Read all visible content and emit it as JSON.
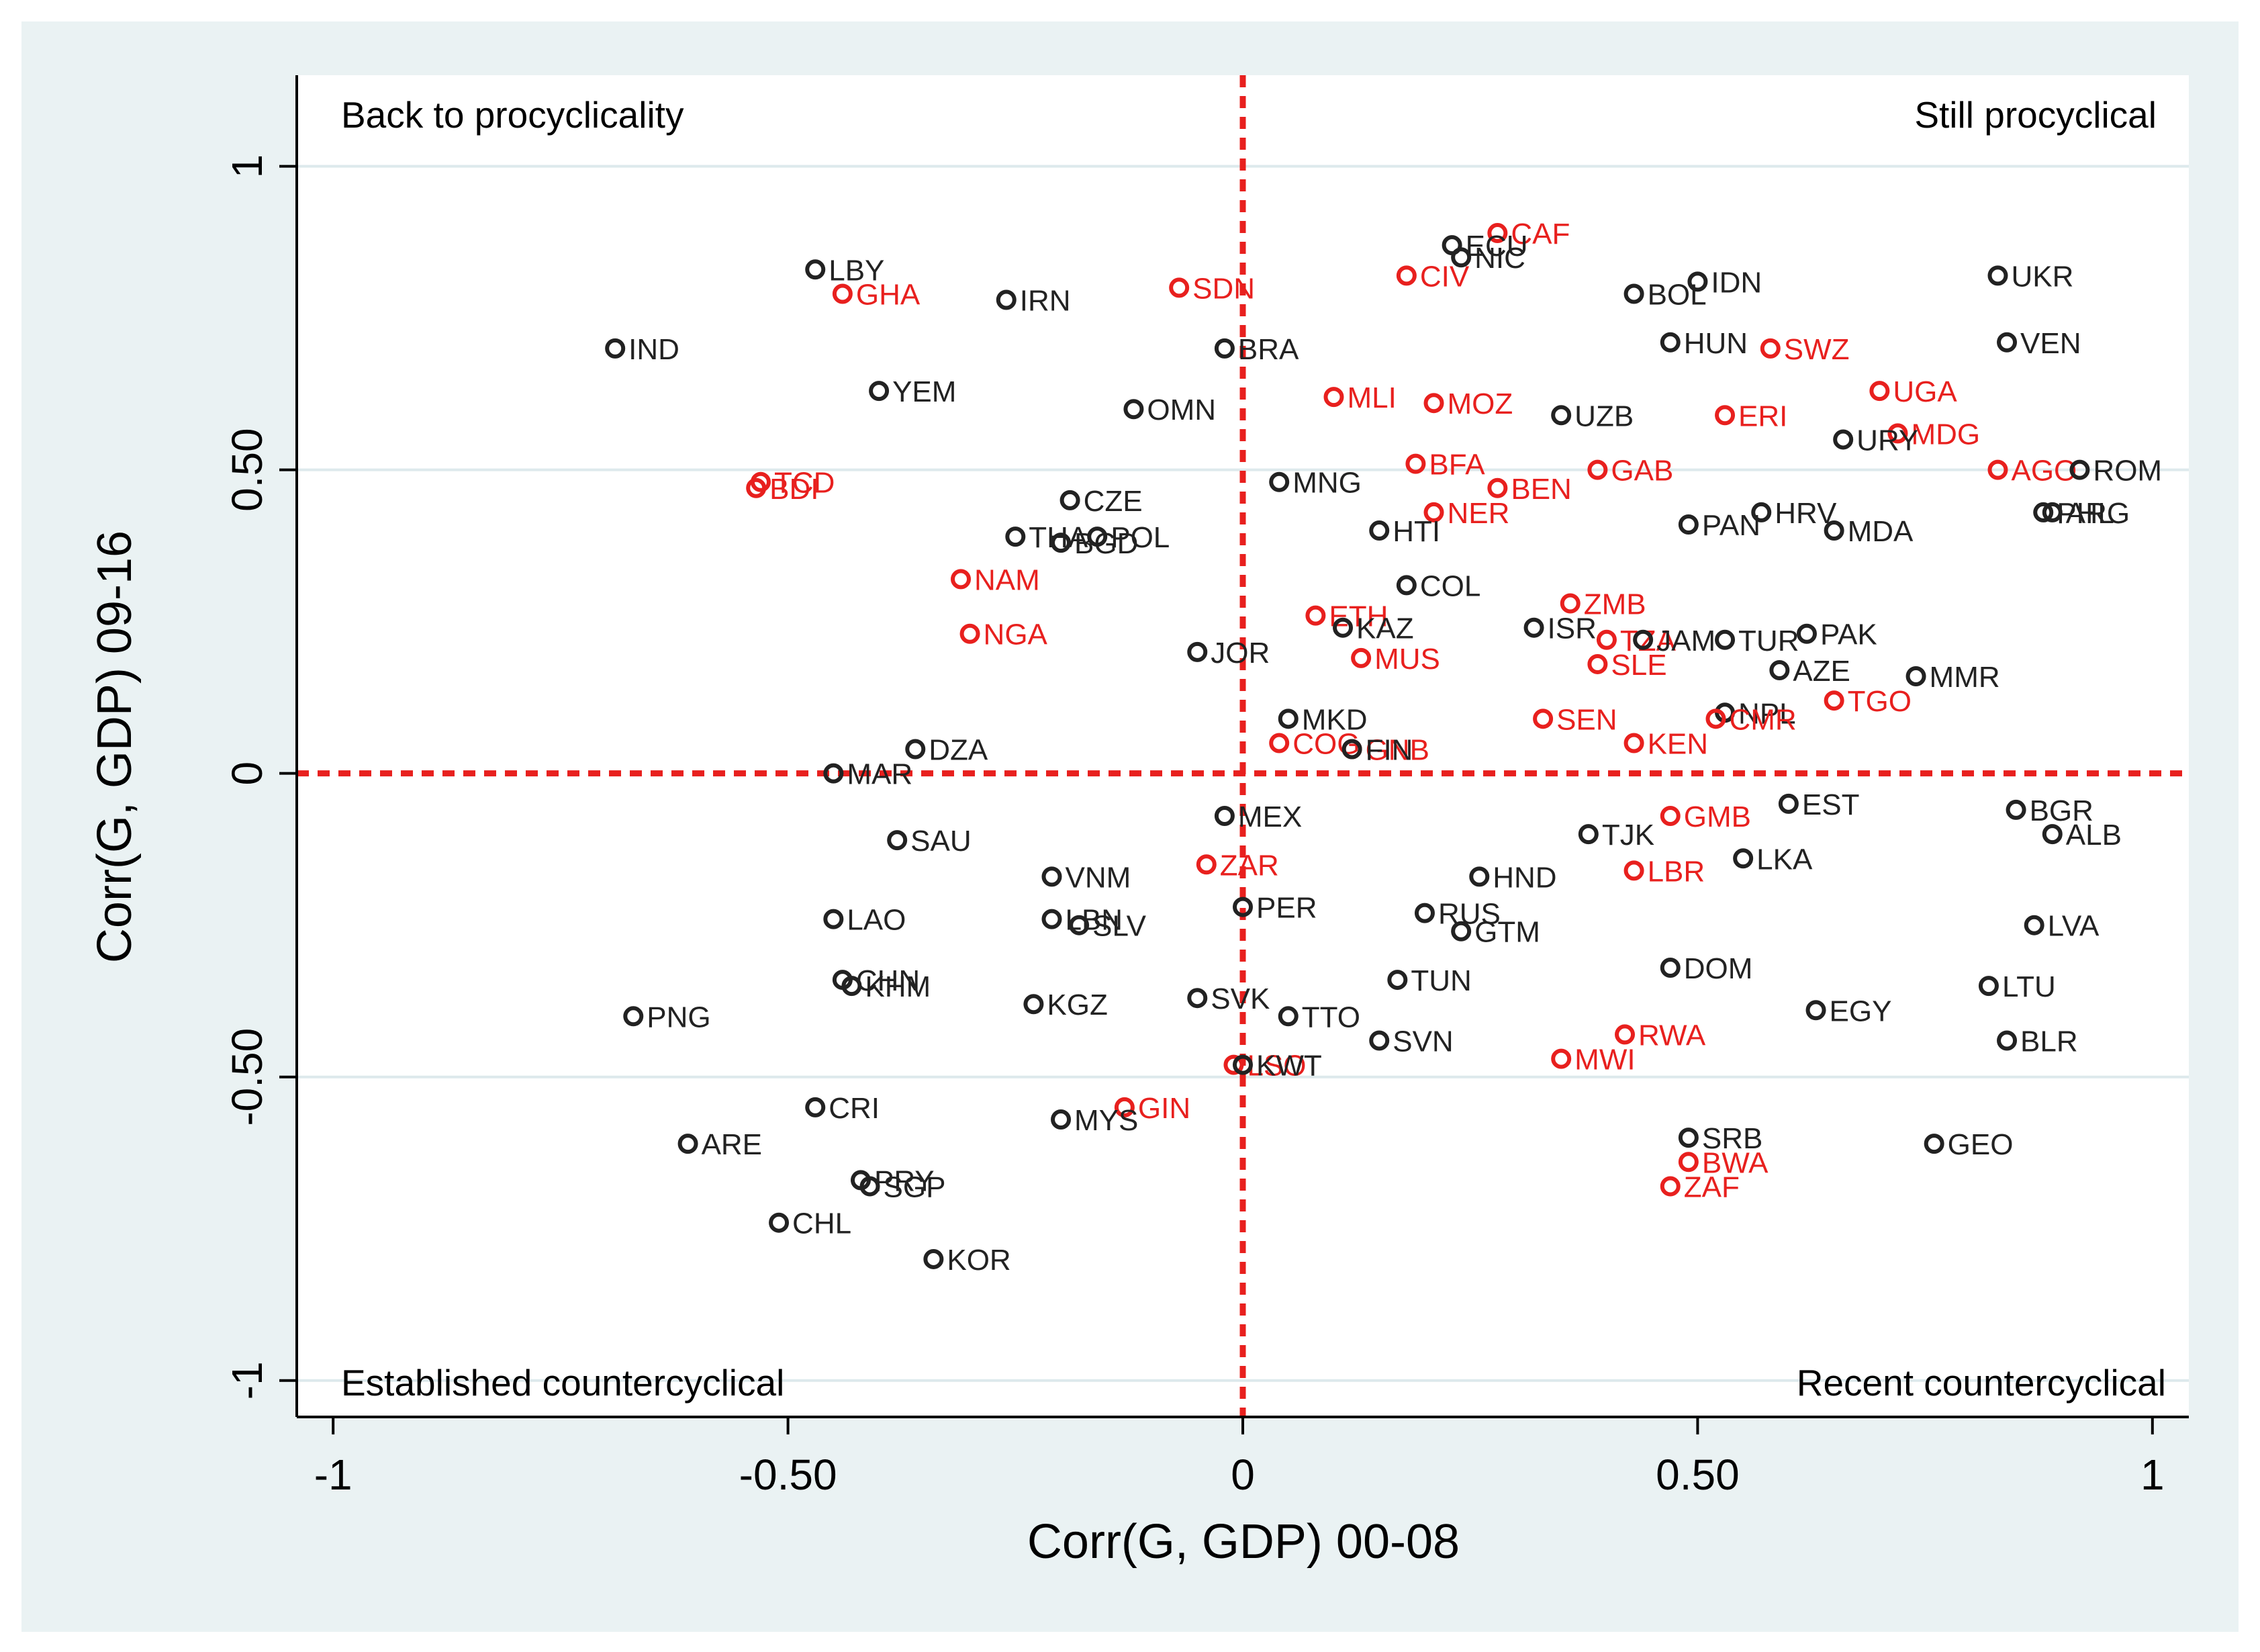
{
  "chart_data": {
    "type": "scatter",
    "xlabel": "Corr(G, GDP) 00-08",
    "ylabel": "Corr(G, GDP) 09-16",
    "xlim": [
      -1.04,
      1.04
    ],
    "ylim": [
      -1.06,
      1.15
    ],
    "xticks": [
      {
        "v": -1,
        "label": "-1"
      },
      {
        "v": -0.5,
        "label": "-0.50"
      },
      {
        "v": 0,
        "label": "0"
      },
      {
        "v": 0.5,
        "label": "0.50"
      },
      {
        "v": 1,
        "label": "1"
      }
    ],
    "yticks": [
      {
        "v": -1,
        "label": "-1"
      },
      {
        "v": -0.5,
        "label": "-0.50"
      },
      {
        "v": 0,
        "label": "0"
      },
      {
        "v": 0.5,
        "label": "0.50"
      },
      {
        "v": 1,
        "label": "1"
      }
    ],
    "grid": "horizontal",
    "reference_lines": {
      "x": 0,
      "y": 0
    },
    "quadrant_labels": {
      "top_left": "Back to procyclicality",
      "top_right": "Still procyclical",
      "bottom_left": "Established countercyclical",
      "bottom_right": "Recent countercyclical"
    },
    "colors": {
      "black_group": "#222222",
      "red_group": "#e8201e",
      "reference_line": "#e8201e",
      "background": "#eaf2f3",
      "grid": "#dde9ec"
    },
    "points": [
      {
        "label": "IND",
        "x": -0.69,
        "y": 0.7,
        "g": "black"
      },
      {
        "label": "LBY",
        "x": -0.47,
        "y": 0.83,
        "g": "black"
      },
      {
        "label": "GHA",
        "x": -0.44,
        "y": 0.79,
        "g": "red"
      },
      {
        "label": "IRN",
        "x": -0.26,
        "y": 0.78,
        "g": "black"
      },
      {
        "label": "SDN",
        "x": -0.07,
        "y": 0.8,
        "g": "red"
      },
      {
        "label": "YEM",
        "x": -0.4,
        "y": 0.63,
        "g": "black"
      },
      {
        "label": "OMN",
        "x": -0.12,
        "y": 0.6,
        "g": "black"
      },
      {
        "label": "BRA",
        "x": -0.02,
        "y": 0.7,
        "g": "black"
      },
      {
        "label": "TCD",
        "x": -0.53,
        "y": 0.48,
        "g": "red"
      },
      {
        "label": "BDI",
        "x": -0.535,
        "y": 0.47,
        "g": "red"
      },
      {
        "label": "CZE",
        "x": -0.19,
        "y": 0.45,
        "g": "black"
      },
      {
        "label": "THA",
        "x": -0.25,
        "y": 0.39,
        "g": "black"
      },
      {
        "label": "POL",
        "x": -0.16,
        "y": 0.39,
        "g": "black"
      },
      {
        "label": "BGD",
        "x": -0.2,
        "y": 0.38,
        "g": "black"
      },
      {
        "label": "NAM",
        "x": -0.31,
        "y": 0.32,
        "g": "red"
      },
      {
        "label": "NGA",
        "x": -0.3,
        "y": 0.23,
        "g": "red"
      },
      {
        "label": "JOR",
        "x": -0.05,
        "y": 0.2,
        "g": "black"
      },
      {
        "label": "DZA",
        "x": -0.36,
        "y": 0.04,
        "g": "black"
      },
      {
        "label": "MAR",
        "x": -0.45,
        "y": 0.0,
        "g": "black"
      },
      {
        "label": "SAU",
        "x": -0.38,
        "y": -0.11,
        "g": "black"
      },
      {
        "label": "MEX",
        "x": -0.02,
        "y": -0.07,
        "g": "black"
      },
      {
        "label": "ZAR",
        "x": -0.04,
        "y": -0.15,
        "g": "red"
      },
      {
        "label": "VNM",
        "x": -0.21,
        "y": -0.17,
        "g": "black"
      },
      {
        "label": "LAO",
        "x": -0.45,
        "y": -0.24,
        "g": "black"
      },
      {
        "label": "LBN",
        "x": -0.21,
        "y": -0.24,
        "g": "black"
      },
      {
        "label": "SLV",
        "x": -0.18,
        "y": -0.25,
        "g": "black"
      },
      {
        "label": "PER",
        "x": 0.0,
        "y": -0.22,
        "g": "black"
      },
      {
        "label": "CHN",
        "x": -0.44,
        "y": -0.34,
        "g": "black"
      },
      {
        "label": "KHM",
        "x": -0.43,
        "y": -0.35,
        "g": "black"
      },
      {
        "label": "PNG",
        "x": -0.67,
        "y": -0.4,
        "g": "black"
      },
      {
        "label": "KGZ",
        "x": -0.23,
        "y": -0.38,
        "g": "black"
      },
      {
        "label": "SVK",
        "x": -0.05,
        "y": -0.37,
        "g": "black"
      },
      {
        "label": "TTO",
        "x": 0.05,
        "y": -0.4,
        "g": "black"
      },
      {
        "label": "SVN",
        "x": 0.15,
        "y": -0.44,
        "g": "black"
      },
      {
        "label": "LSO",
        "x": -0.01,
        "y": -0.48,
        "g": "red"
      },
      {
        "label": "KWT",
        "x": 0.0,
        "y": -0.48,
        "g": "black"
      },
      {
        "label": "CRI",
        "x": -0.47,
        "y": -0.55,
        "g": "black"
      },
      {
        "label": "GIN",
        "x": -0.13,
        "y": -0.55,
        "g": "red"
      },
      {
        "label": "MYS",
        "x": -0.2,
        "y": -0.57,
        "g": "black"
      },
      {
        "label": "ARE",
        "x": -0.61,
        "y": -0.61,
        "g": "black"
      },
      {
        "label": "PRY",
        "x": -0.42,
        "y": -0.67,
        "g": "black"
      },
      {
        "label": "SGP",
        "x": -0.41,
        "y": -0.68,
        "g": "black"
      },
      {
        "label": "CHL",
        "x": -0.51,
        "y": -0.74,
        "g": "black"
      },
      {
        "label": "KOR",
        "x": -0.34,
        "y": -0.8,
        "g": "black"
      },
      {
        "label": "CAF",
        "x": 0.28,
        "y": 0.89,
        "g": "red"
      },
      {
        "label": "ECU",
        "x": 0.23,
        "y": 0.87,
        "g": "black"
      },
      {
        "label": "NIC",
        "x": 0.24,
        "y": 0.85,
        "g": "black"
      },
      {
        "label": "CIV",
        "x": 0.18,
        "y": 0.82,
        "g": "red"
      },
      {
        "label": "BOL",
        "x": 0.43,
        "y": 0.79,
        "g": "black"
      },
      {
        "label": "IDN",
        "x": 0.5,
        "y": 0.81,
        "g": "black"
      },
      {
        "label": "UKR",
        "x": 0.83,
        "y": 0.82,
        "g": "black"
      },
      {
        "label": "HUN",
        "x": 0.47,
        "y": 0.71,
        "g": "black"
      },
      {
        "label": "SWZ",
        "x": 0.58,
        "y": 0.7,
        "g": "red"
      },
      {
        "label": "VEN",
        "x": 0.84,
        "y": 0.71,
        "g": "black"
      },
      {
        "label": "MLI",
        "x": 0.1,
        "y": 0.62,
        "g": "red"
      },
      {
        "label": "MOZ",
        "x": 0.21,
        "y": 0.61,
        "g": "red"
      },
      {
        "label": "UZB",
        "x": 0.35,
        "y": 0.59,
        "g": "black"
      },
      {
        "label": "ERI",
        "x": 0.53,
        "y": 0.59,
        "g": "red"
      },
      {
        "label": "UGA",
        "x": 0.7,
        "y": 0.63,
        "g": "red"
      },
      {
        "label": "MDG",
        "x": 0.72,
        "y": 0.56,
        "g": "red"
      },
      {
        "label": "URY",
        "x": 0.66,
        "y": 0.55,
        "g": "black"
      },
      {
        "label": "MNG",
        "x": 0.04,
        "y": 0.48,
        "g": "black"
      },
      {
        "label": "BFA",
        "x": 0.19,
        "y": 0.51,
        "g": "red"
      },
      {
        "label": "BEN",
        "x": 0.28,
        "y": 0.47,
        "g": "red"
      },
      {
        "label": "GAB",
        "x": 0.39,
        "y": 0.5,
        "g": "red"
      },
      {
        "label": "AGO",
        "x": 0.83,
        "y": 0.5,
        "g": "red"
      },
      {
        "label": "ROM",
        "x": 0.92,
        "y": 0.5,
        "g": "black"
      },
      {
        "label": "NER",
        "x": 0.21,
        "y": 0.43,
        "g": "red"
      },
      {
        "label": "HTI",
        "x": 0.15,
        "y": 0.4,
        "g": "black"
      },
      {
        "label": "PAN",
        "x": 0.49,
        "y": 0.41,
        "g": "black"
      },
      {
        "label": "HRV",
        "x": 0.57,
        "y": 0.43,
        "g": "black"
      },
      {
        "label": "MDA",
        "x": 0.65,
        "y": 0.4,
        "g": "black"
      },
      {
        "label": "PHL",
        "x": 0.88,
        "y": 0.43,
        "g": "black"
      },
      {
        "label": "ARG",
        "x": 0.89,
        "y": 0.43,
        "g": "black"
      },
      {
        "label": "COL",
        "x": 0.18,
        "y": 0.31,
        "g": "black"
      },
      {
        "label": "ETH",
        "x": 0.08,
        "y": 0.26,
        "g": "red"
      },
      {
        "label": "KAZ",
        "x": 0.11,
        "y": 0.24,
        "g": "black"
      },
      {
        "label": "MUS",
        "x": 0.13,
        "y": 0.19,
        "g": "red"
      },
      {
        "label": "ZMB",
        "x": 0.36,
        "y": 0.28,
        "g": "red"
      },
      {
        "label": "ISR",
        "x": 0.32,
        "y": 0.24,
        "g": "black"
      },
      {
        "label": "TZA",
        "x": 0.4,
        "y": 0.22,
        "g": "red"
      },
      {
        "label": "JAM",
        "x": 0.44,
        "y": 0.22,
        "g": "black"
      },
      {
        "label": "TUR",
        "x": 0.53,
        "y": 0.22,
        "g": "black"
      },
      {
        "label": "PAK",
        "x": 0.62,
        "y": 0.23,
        "g": "black"
      },
      {
        "label": "SLE",
        "x": 0.39,
        "y": 0.18,
        "g": "red"
      },
      {
        "label": "AZE",
        "x": 0.59,
        "y": 0.17,
        "g": "black"
      },
      {
        "label": "MMR",
        "x": 0.74,
        "y": 0.16,
        "g": "black"
      },
      {
        "label": "TGO",
        "x": 0.65,
        "y": 0.12,
        "g": "red"
      },
      {
        "label": "MKD",
        "x": 0.05,
        "y": 0.09,
        "g": "black"
      },
      {
        "label": "COG",
        "x": 0.04,
        "y": 0.05,
        "g": "red"
      },
      {
        "label": "GNB",
        "x": 0.12,
        "y": 0.04,
        "g": "red"
      },
      {
        "label": "FIN",
        "x": 0.12,
        "y": 0.04,
        "g": "black"
      },
      {
        "label": "SEN",
        "x": 0.33,
        "y": 0.09,
        "g": "red"
      },
      {
        "label": "NPL",
        "x": 0.53,
        "y": 0.1,
        "g": "black"
      },
      {
        "label": "CMR",
        "x": 0.52,
        "y": 0.09,
        "g": "red"
      },
      {
        "label": "KEN",
        "x": 0.43,
        "y": 0.05,
        "g": "red"
      },
      {
        "label": "EST",
        "x": 0.6,
        "y": -0.05,
        "g": "black"
      },
      {
        "label": "BGR",
        "x": 0.85,
        "y": -0.06,
        "g": "black"
      },
      {
        "label": "ALB",
        "x": 0.89,
        "y": -0.1,
        "g": "black"
      },
      {
        "label": "GMB",
        "x": 0.47,
        "y": -0.07,
        "g": "red"
      },
      {
        "label": "TJK",
        "x": 0.38,
        "y": -0.1,
        "g": "black"
      },
      {
        "label": "LKA",
        "x": 0.55,
        "y": -0.14,
        "g": "black"
      },
      {
        "label": "LBR",
        "x": 0.43,
        "y": -0.16,
        "g": "red"
      },
      {
        "label": "HND",
        "x": 0.26,
        "y": -0.17,
        "g": "black"
      },
      {
        "label": "RUS",
        "x": 0.2,
        "y": -0.23,
        "g": "black"
      },
      {
        "label": "GTM",
        "x": 0.24,
        "y": -0.26,
        "g": "black"
      },
      {
        "label": "LVA",
        "x": 0.87,
        "y": -0.25,
        "g": "black"
      },
      {
        "label": "DOM",
        "x": 0.47,
        "y": -0.32,
        "g": "black"
      },
      {
        "label": "TUN",
        "x": 0.17,
        "y": -0.34,
        "g": "black"
      },
      {
        "label": "LTU",
        "x": 0.82,
        "y": -0.35,
        "g": "black"
      },
      {
        "label": "EGY",
        "x": 0.63,
        "y": -0.39,
        "g": "black"
      },
      {
        "label": "RWA",
        "x": 0.42,
        "y": -0.43,
        "g": "red"
      },
      {
        "label": "MWI",
        "x": 0.35,
        "y": -0.47,
        "g": "red"
      },
      {
        "label": "BLR",
        "x": 0.84,
        "y": -0.44,
        "g": "black"
      },
      {
        "label": "SRB",
        "x": 0.49,
        "y": -0.6,
        "g": "black"
      },
      {
        "label": "BWA",
        "x": 0.49,
        "y": -0.64,
        "g": "red"
      },
      {
        "label": "ZAF",
        "x": 0.47,
        "y": -0.68,
        "g": "red"
      },
      {
        "label": "GEO",
        "x": 0.76,
        "y": -0.61,
        "g": "black"
      }
    ]
  }
}
